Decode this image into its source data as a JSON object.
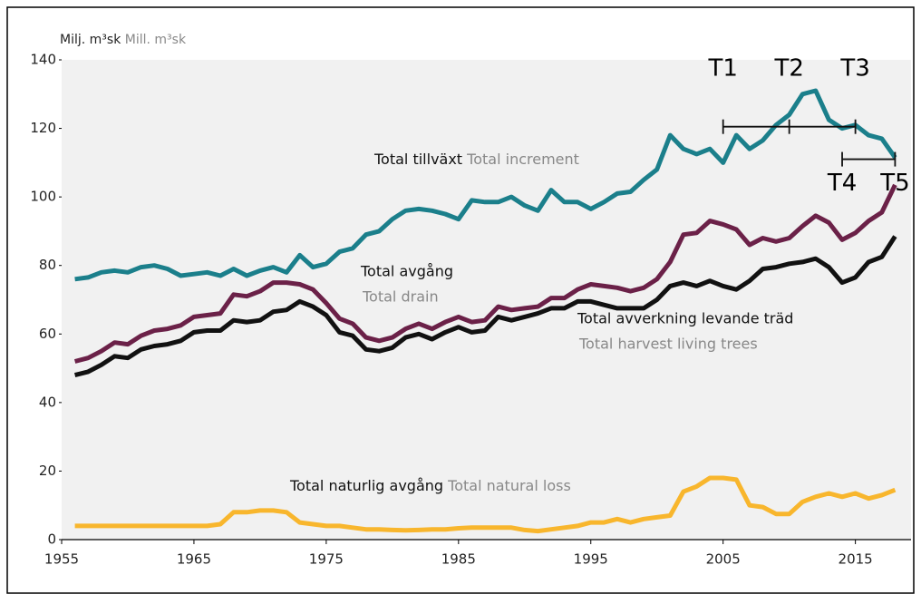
{
  "chart_data": {
    "type": "line",
    "ylabel": "Milj. m³sk",
    "ylabel_en": "Mill. m³sk",
    "x": [
      1956,
      1957,
      1958,
      1959,
      1960,
      1961,
      1962,
      1963,
      1964,
      1965,
      1966,
      1967,
      1968,
      1969,
      1970,
      1971,
      1972,
      1973,
      1974,
      1975,
      1976,
      1977,
      1978,
      1979,
      1980,
      1981,
      1982,
      1983,
      1984,
      1985,
      1986,
      1987,
      1988,
      1989,
      1990,
      1991,
      1992,
      1993,
      1994,
      1995,
      1996,
      1997,
      1998,
      1999,
      2000,
      2001,
      2002,
      2003,
      2004,
      2005,
      2006,
      2007,
      2008,
      2009,
      2010,
      2011,
      2012,
      2013,
      2014,
      2015,
      2016,
      2017,
      2018
    ],
    "series": [
      {
        "name": "Total tillväxt",
        "name_en": "Total increment",
        "color": "#1b7f8b",
        "values": [
          76,
          76.5,
          78,
          78.5,
          78,
          79.5,
          80,
          79,
          77,
          77.5,
          78,
          77,
          79,
          77,
          78.5,
          79.5,
          78,
          83,
          79.5,
          80.5,
          84,
          85,
          89,
          90,
          93.5,
          96,
          96.5,
          96,
          95,
          93.5,
          99,
          98.5,
          98.5,
          100,
          97.5,
          96,
          102,
          98.5,
          98.5,
          96.5,
          98.5,
          101,
          101.5,
          105,
          108,
          118,
          114,
          112.5,
          114,
          110,
          118,
          114,
          116.5,
          121,
          124,
          130,
          131,
          122.5,
          120,
          121,
          118,
          117,
          111.5
        ]
      },
      {
        "name": "Total avgång",
        "name_en": "Total drain",
        "color": "#6b2148",
        "values": [
          52,
          53,
          55,
          57.5,
          57,
          59.5,
          61,
          61.5,
          62.5,
          65,
          65.5,
          66,
          71.5,
          71,
          72.5,
          75,
          75,
          74.5,
          73,
          69,
          64.5,
          63,
          59,
          58,
          59,
          61.5,
          63,
          61.5,
          63.5,
          65,
          63.5,
          64,
          68,
          67,
          67.5,
          68,
          70.5,
          70.5,
          73,
          74.5,
          74,
          73.5,
          72.5,
          73.5,
          76,
          81,
          89,
          89.5,
          93,
          92,
          90.5,
          86,
          88,
          87,
          88,
          91.5,
          94.5,
          92.5,
          87.5,
          89.5,
          93,
          95.5,
          103.5
        ]
      },
      {
        "name": "Total avverkning levande träd",
        "name_en": "Total harvest living trees",
        "color": "#111111",
        "values": [
          48,
          49,
          51,
          53.5,
          53,
          55.5,
          56.5,
          57,
          58,
          60.5,
          61,
          61,
          64,
          63.5,
          64,
          66.5,
          67,
          69.5,
          68,
          65.5,
          60.5,
          59.5,
          55.5,
          55,
          56,
          59,
          60,
          58.5,
          60.5,
          62,
          60.5,
          61,
          65,
          64,
          65,
          66,
          67.5,
          67.5,
          69.5,
          69.5,
          68.5,
          67.5,
          67.5,
          67.5,
          70,
          74,
          75,
          74,
          75.5,
          74,
          73,
          75.5,
          79,
          79.5,
          80.5,
          81,
          82,
          79.5,
          75,
          76.5,
          81,
          82.5,
          88.5
        ]
      },
      {
        "name": "Total naturlig avgång",
        "name_en": "Total natural loss",
        "color": "#f8b62d",
        "values": [
          4,
          4,
          4,
          4,
          4,
          4,
          4,
          4,
          4,
          4,
          4,
          4.5,
          8,
          8,
          8.5,
          8.5,
          8,
          5,
          4.5,
          4,
          4,
          3.5,
          3,
          3,
          2.8,
          2.7,
          2.8,
          3,
          3,
          3.3,
          3.5,
          3.5,
          3.5,
          3.5,
          2.8,
          2.5,
          3,
          3.5,
          4,
          5,
          5,
          6,
          5,
          6,
          6.5,
          7,
          14,
          15.5,
          18,
          18,
          17.5,
          10,
          9.5,
          7.5,
          7.5,
          11,
          12.5,
          13.5,
          12.5,
          13.5,
          12,
          13,
          14.5
        ]
      }
    ],
    "brackets": [
      {
        "start": 2005,
        "end": 2015,
        "y": 120.5,
        "ticks": [
          {
            "x": 2005,
            "label": "T1"
          },
          {
            "x": 2010,
            "label": "T2"
          },
          {
            "x": 2015,
            "label": "T3"
          }
        ]
      },
      {
        "start": 2014,
        "end": 2018,
        "y": 111,
        "ticks": [
          {
            "x": 2014,
            "label": "T4"
          },
          {
            "x": 2018,
            "label": "T5"
          }
        ]
      }
    ],
    "xlim": [
      1955,
      2019
    ],
    "xticks": [
      1955,
      1965,
      1975,
      1985,
      1995,
      2005,
      2015
    ],
    "ylim": [
      0,
      140
    ],
    "yticks": [
      0,
      20,
      40,
      60,
      80,
      100,
      120,
      140
    ]
  }
}
